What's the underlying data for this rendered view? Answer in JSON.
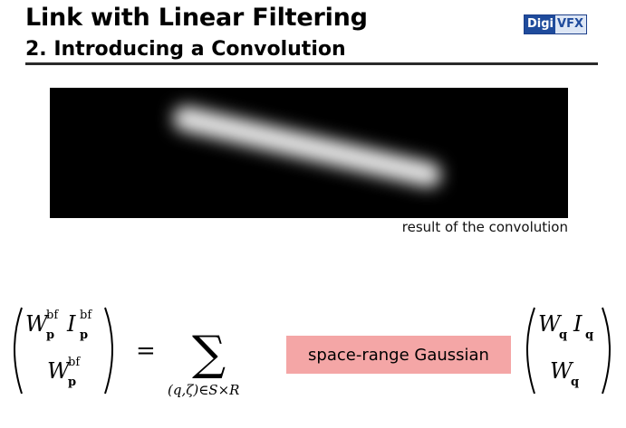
{
  "slide": {
    "title": "Link with Linear Filtering",
    "subtitle": "2. Introducing a Convolution",
    "logo": {
      "part1": "Digi",
      "part2": "VFX"
    },
    "caption": "result of the convolution",
    "equation": {
      "lhs_top_w": "W",
      "lhs_top_w_sup": "bf",
      "lhs_top_w_sub": "p",
      "lhs_top_i": "I",
      "lhs_top_i_sup": "bf",
      "lhs_top_i_sub": "p",
      "lhs_bot_w": "W",
      "lhs_bot_w_sup": "bf",
      "lhs_bot_w_sub": "p",
      "equals": "=",
      "sum_symbol": "∑",
      "sum_index": "(q,ζ)∈S×R",
      "kernel_label": "space-range Gaussian",
      "rhs_top_w": "W",
      "rhs_top_w_sub": "q",
      "rhs_top_i": "I",
      "rhs_top_i_sub": "q",
      "rhs_bot_w": "W",
      "rhs_bot_w_sub": "q"
    }
  }
}
